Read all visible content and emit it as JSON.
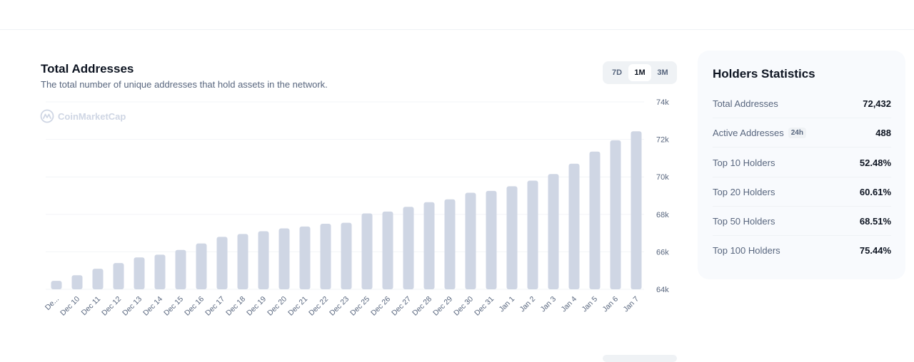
{
  "chart_title": "Total Addresses",
  "chart_subtitle": "The total number of unique addresses that hold assets in the network.",
  "range_buttons": [
    "7D",
    "1M",
    "3M"
  ],
  "active_range": "1M",
  "watermark": "CoinMarketCap",
  "chart_data": {
    "type": "bar",
    "categories": [
      "De...",
      "Dec 10",
      "Dec 11",
      "Dec 12",
      "Dec 13",
      "Dec 14",
      "Dec 15",
      "Dec 16",
      "Dec 17",
      "Dec 18",
      "Dec 19",
      "Dec 20",
      "Dec 21",
      "Dec 22",
      "Dec 23",
      "Dec 25",
      "Dec 26",
      "Dec 27",
      "Dec 28",
      "Dec 29",
      "Dec 30",
      "Dec 31",
      "Jan 1",
      "Jan 2",
      "Jan 3",
      "Jan 4",
      "Jan 5",
      "Jan 6",
      "Jan 7"
    ],
    "values": [
      64450,
      64750,
      65100,
      65400,
      65700,
      65850,
      66100,
      66450,
      66800,
      66950,
      67100,
      67250,
      67350,
      67500,
      67550,
      68050,
      68150,
      68400,
      68650,
      68800,
      69150,
      69250,
      69500,
      69800,
      70150,
      70700,
      71350,
      71950,
      72432
    ],
    "yticks": [
      "74k",
      "72k",
      "70k",
      "68k",
      "66k",
      "64k"
    ],
    "ylim": [
      64000,
      74000
    ],
    "color": "#cfd6e4",
    "grid": true
  },
  "stats": {
    "title": "Holders Statistics",
    "rows": [
      {
        "label": "Total Addresses",
        "value": "72,432"
      },
      {
        "label": "Active Addresses",
        "badge": "24h",
        "value": "488"
      },
      {
        "label": "Top 10 Holders",
        "value": "52.48%"
      },
      {
        "label": "Top 20 Holders",
        "value": "60.61%"
      },
      {
        "label": "Top 50 Holders",
        "value": "68.51%"
      },
      {
        "label": "Top 100 Holders",
        "value": "75.44%"
      }
    ]
  }
}
